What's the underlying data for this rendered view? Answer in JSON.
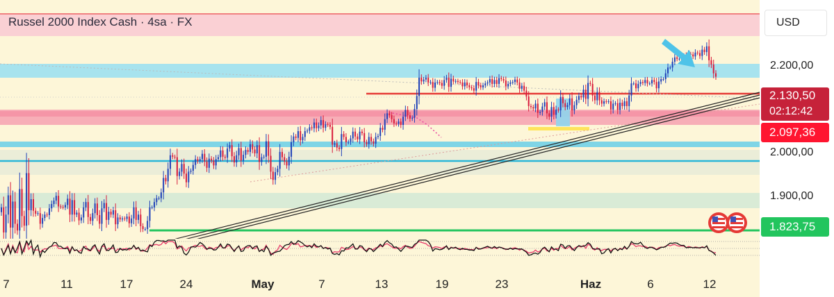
{
  "header": {
    "title": "Russel 2000 Index Cash · 4sa · FX",
    "currency_button": "USD"
  },
  "colors": {
    "up": "#1e40b8",
    "down": "#d81b3c",
    "resistance": "#e53935",
    "current_price_bg": "#c6223a",
    "support_line": "#22c55e"
  },
  "chart_data": {
    "type": "candlestick",
    "title": "Russel 2000 Index Cash · 4sa · FX",
    "interval": "4sa",
    "currency": "USD",
    "y_ticks": [
      "2.200,00",
      "2.000,00",
      "1.900,00"
    ],
    "x_ticks": [
      "7",
      "11",
      "17",
      "24",
      "May",
      "7",
      "13",
      "19",
      "23",
      "Haz",
      "6",
      "12"
    ],
    "x_ticks_bold": [
      "May",
      "Haz"
    ],
    "ylim": [
      1795,
      2290
    ],
    "price_labels": {
      "current": "2.130,50",
      "countdown": "02:12:42",
      "level": "2.097,36",
      "support": "1.823,75"
    },
    "levels": {
      "current": 2130.5,
      "red_zone": 2097.36,
      "support": 1823.75
    },
    "closes": [
      1860,
      1808,
      1845,
      1885,
      1818,
      1872,
      1826,
      1812,
      1898,
      1842,
      1822,
      1931,
      1854,
      1877,
      1853,
      1847,
      1848,
      1826,
      1838,
      1845,
      1844,
      1858,
      1867,
      1874,
      1884,
      1862,
      1861,
      1860,
      1865,
      1878,
      1845,
      1875,
      1845,
      1849,
      1833,
      1839,
      1860,
      1871,
      1840,
      1832,
      1848,
      1868,
      1844,
      1826,
      1858,
      1869,
      1834,
      1851,
      1845,
      1854,
      1825,
      1839,
      1835,
      1837,
      1836,
      1841,
      1827,
      1837,
      1860,
      1834,
      1845,
      1821,
      1815,
      1815,
      1832,
      1860,
      1860,
      1871,
      1879,
      1879,
      1891,
      1921,
      1914,
      1940,
      1968,
      1965,
      1964,
      1925,
      1934,
      1950,
      1930,
      1912,
      1934,
      1936,
      1948,
      1960,
      1956,
      1960,
      1971,
      1955,
      1942,
      1961,
      1957,
      1947,
      1960,
      1964,
      1978,
      1965,
      1963,
      1982,
      1989,
      1966,
      1953,
      1968,
      1983,
      1957,
      1969,
      1979,
      1975,
      1991,
      1980,
      1972,
      1989,
      1954,
      1964,
      1965,
      1997,
      1967,
      1934,
      1917,
      1933,
      1940,
      1975,
      1964,
      1955,
      1947,
      1965,
      1995,
      2007,
      2004,
      2018,
      1999,
      2006,
      2018,
      2019,
      2026,
      2024,
      2036,
      2024,
      2030,
      2041,
      2025,
      2032,
      2031,
      2027,
      1990,
      1993,
      1984,
      1981,
      2012,
      2006,
      1995,
      1996,
      2003,
      2017,
      2007,
      2001,
      2017,
      2014,
      1995,
      1991,
      2006,
      1997,
      1992,
      2006,
      2008,
      2025,
      2021,
      2043,
      2055,
      2051,
      2043,
      2034,
      2033,
      2038,
      2031,
      2048,
      2062,
      2051,
      2044,
      2046,
      2064,
      2091,
      2129,
      2121,
      2125,
      2129,
      2119,
      2120,
      2108,
      2119,
      2120,
      2118,
      2112,
      2124,
      2129,
      2110,
      2127,
      2121,
      2122,
      2120,
      2119,
      2111,
      2119,
      2113,
      2109,
      2107,
      2102,
      2120,
      2113,
      2109,
      2113,
      2117,
      2119,
      2126,
      2116,
      2124,
      2116,
      2128,
      2126,
      2123,
      2111,
      2116,
      2119,
      2120,
      2125,
      2119,
      2106,
      2112,
      2102,
      2090,
      2070,
      2068,
      2065,
      2075,
      2056,
      2058,
      2069,
      2078,
      2055,
      2048,
      2068,
      2052,
      2063,
      2061,
      2089,
      2076,
      2068,
      2072,
      2086,
      2061,
      2072,
      2083,
      2091,
      2088,
      2104,
      2085,
      2118,
      2116,
      2092,
      2082,
      2099,
      2082,
      2075,
      2080,
      2079,
      2080,
      2063,
      2075,
      2076,
      2062,
      2077,
      2070,
      2080,
      2070,
      2092,
      2117,
      2117,
      2107,
      2116,
      2120,
      2118,
      2124,
      2117,
      2117,
      2124,
      2120,
      2107,
      2121,
      2126,
      2126,
      2138,
      2150,
      2150,
      2162,
      2171,
      2168,
      2168,
      2174,
      2175,
      2168,
      2178,
      2177,
      2173,
      2181,
      2180,
      2174,
      2187,
      2182,
      2194,
      2165,
      2156,
      2138,
      2131
    ]
  }
}
